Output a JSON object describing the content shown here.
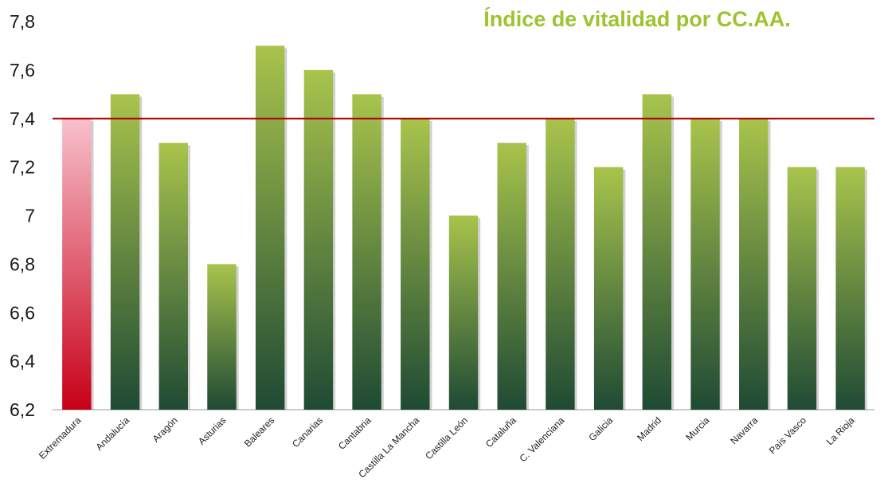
{
  "colors": {
    "title": "#9DC32E",
    "reference_line": "#B00000",
    "bar_green_top": "#A8C44C",
    "bar_green_bottom": "#1F4A34",
    "bar_highlight_top": "#F8C0CC",
    "bar_highlight_bottom": "#C80018",
    "axis": "#999999"
  },
  "chart_data": {
    "type": "bar",
    "title": "Índice de vitalidad por CC.AA.",
    "xlabel": "",
    "ylabel": "",
    "ylim": [
      6.2,
      7.8
    ],
    "yticks": [
      "6,2",
      "6,4",
      "6,6",
      "6,8",
      "7",
      "7,2",
      "7,4",
      "7,6",
      "7,8"
    ],
    "grid": false,
    "legend": "none",
    "reference_line": 7.4,
    "highlighted_category": "Extremadura",
    "categories": [
      "Extremadura",
      "Andalucía",
      "Aragón",
      "Asturias",
      "Baleares",
      "Canarias",
      "Cantabria",
      "Castilla La Mancha",
      "Castilla León",
      "Cataluña",
      "C. Valenciana",
      "Galicia",
      "Madrid",
      "Murcia",
      "Navarra",
      "País Vasco",
      "La Rioja"
    ],
    "values": [
      7.4,
      7.5,
      7.3,
      6.8,
      7.7,
      7.6,
      7.5,
      7.4,
      7.0,
      7.3,
      7.4,
      7.2,
      7.5,
      7.4,
      7.4,
      7.2,
      7.2
    ]
  }
}
